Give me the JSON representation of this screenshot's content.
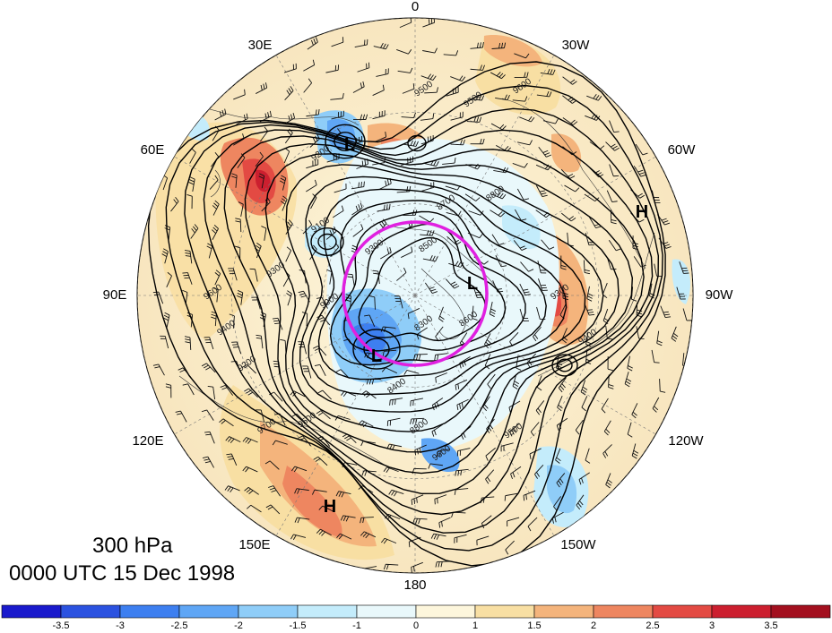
{
  "map": {
    "longitude_labels": [
      {
        "text": "0",
        "lon": 0
      },
      {
        "text": "30W",
        "lon": -30
      },
      {
        "text": "60W",
        "lon": -60
      },
      {
        "text": "90W",
        "lon": -90
      },
      {
        "text": "120W",
        "lon": -120
      },
      {
        "text": "150W",
        "lon": -150
      },
      {
        "text": "180",
        "lon": 180
      },
      {
        "text": "150E",
        "lon": 150
      },
      {
        "text": "120E",
        "lon": 120
      },
      {
        "text": "90E",
        "lon": 90
      },
      {
        "text": "60E",
        "lon": 60
      },
      {
        "text": "30E",
        "lon": 30
      }
    ],
    "pressure_centers": [
      {
        "text": "L",
        "kind": "low"
      },
      {
        "text": "L",
        "kind": "low"
      },
      {
        "text": "L",
        "kind": "low"
      },
      {
        "text": "H",
        "kind": "high"
      },
      {
        "text": "H",
        "kind": "high"
      }
    ],
    "contour_labels": [
      "9600",
      "9500",
      "9500",
      "9200",
      "9100",
      "9300",
      "8700",
      "8800",
      "8500",
      "8600",
      "8300",
      "9300",
      "9400",
      "9500",
      "9600",
      "9700",
      "9500",
      "8800",
      "8400",
      "9600",
      "9400",
      "9200",
      "9300",
      "9000"
    ],
    "highlight_color": "#e020e0"
  },
  "title": {
    "level": "300 hPa",
    "time": "0000 UTC 15 Dec 1998"
  },
  "colorbar": {
    "ticks": [
      "-3.5",
      "-3",
      "-2.5",
      "-2",
      "-1.5",
      "-1",
      "0",
      "1",
      "1.5",
      "2",
      "2.5",
      "3",
      "3.5"
    ],
    "colors": [
      "#1a1acc",
      "#2b52e0",
      "#3d7ff0",
      "#5fa6f5",
      "#8fcdf8",
      "#c4ecfb",
      "#e9f8fb",
      "#fdf6dc",
      "#f8dfa3",
      "#f4b47c",
      "#ee8660",
      "#e34a43",
      "#cc1f2f",
      "#a3101f"
    ]
  }
}
